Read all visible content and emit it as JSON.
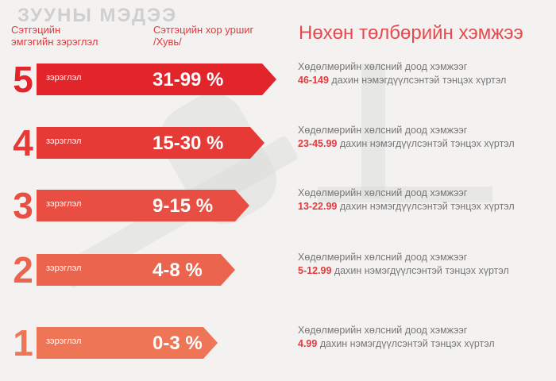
{
  "watermark": "ЗУУНЫ МЭДЭЭ",
  "header": {
    "left": "Сэтгэцийн\nэмгэгийн зэрэглэл",
    "middle": "Сэтгэцийн хор уршиг\n/Хувь/",
    "right": "Нөхөн төлбөрийн хэмжээ"
  },
  "rows": [
    {
      "number": "5",
      "level": "зэрэглэл",
      "percent": "31-99 %",
      "amount": "46-149",
      "desc_line1": "Хөдөлмөрийн хөлсний доод хэмжээг",
      "desc_line2": "дахин нэмэгдүүлсэнтэй тэнцэх хүртэл",
      "color": "#e2242b"
    },
    {
      "number": "4",
      "level": "зэрэглэл",
      "percent": "15-30 %",
      "amount": "23-45.99",
      "desc_line1": "Хөдөлмөрийн хөлсний доод хэмжээг",
      "desc_line2": "дахин нэмэгдүүлсэнтэй тэнцэх хүртэл",
      "color": "#e53a36"
    },
    {
      "number": "3",
      "level": "зэрэглэл",
      "percent": "9-15 %",
      "amount": "13-22.99",
      "desc_line1": "Хөдөлмөрийн хөлсний доод хэмжээг",
      "desc_line2": "дахин нэмэгдүүлсэнтэй тэнцэх хүртэл",
      "color": "#e84e41"
    },
    {
      "number": "2",
      "level": "зэрэглэл",
      "percent": "4-8 %",
      "amount": "5-12.99",
      "desc_line1": "Хөдөлмөрийн хөлсний доод хэмжээг",
      "desc_line2": "дахин нэмэгдүүлсэнтэй тэнцэх хүртэл",
      "color": "#eb644d"
    },
    {
      "number": "1",
      "level": "зэрэглэл",
      "percent": "0-3 %",
      "amount": "4.99",
      "desc_line1": "Хөдөлмөрийн хөлсний доод хэмжээг",
      "desc_line2": "дахин нэмэгдүүлсэнтэй тэнцэх хүртэл",
      "color": "#ee7657"
    }
  ]
}
